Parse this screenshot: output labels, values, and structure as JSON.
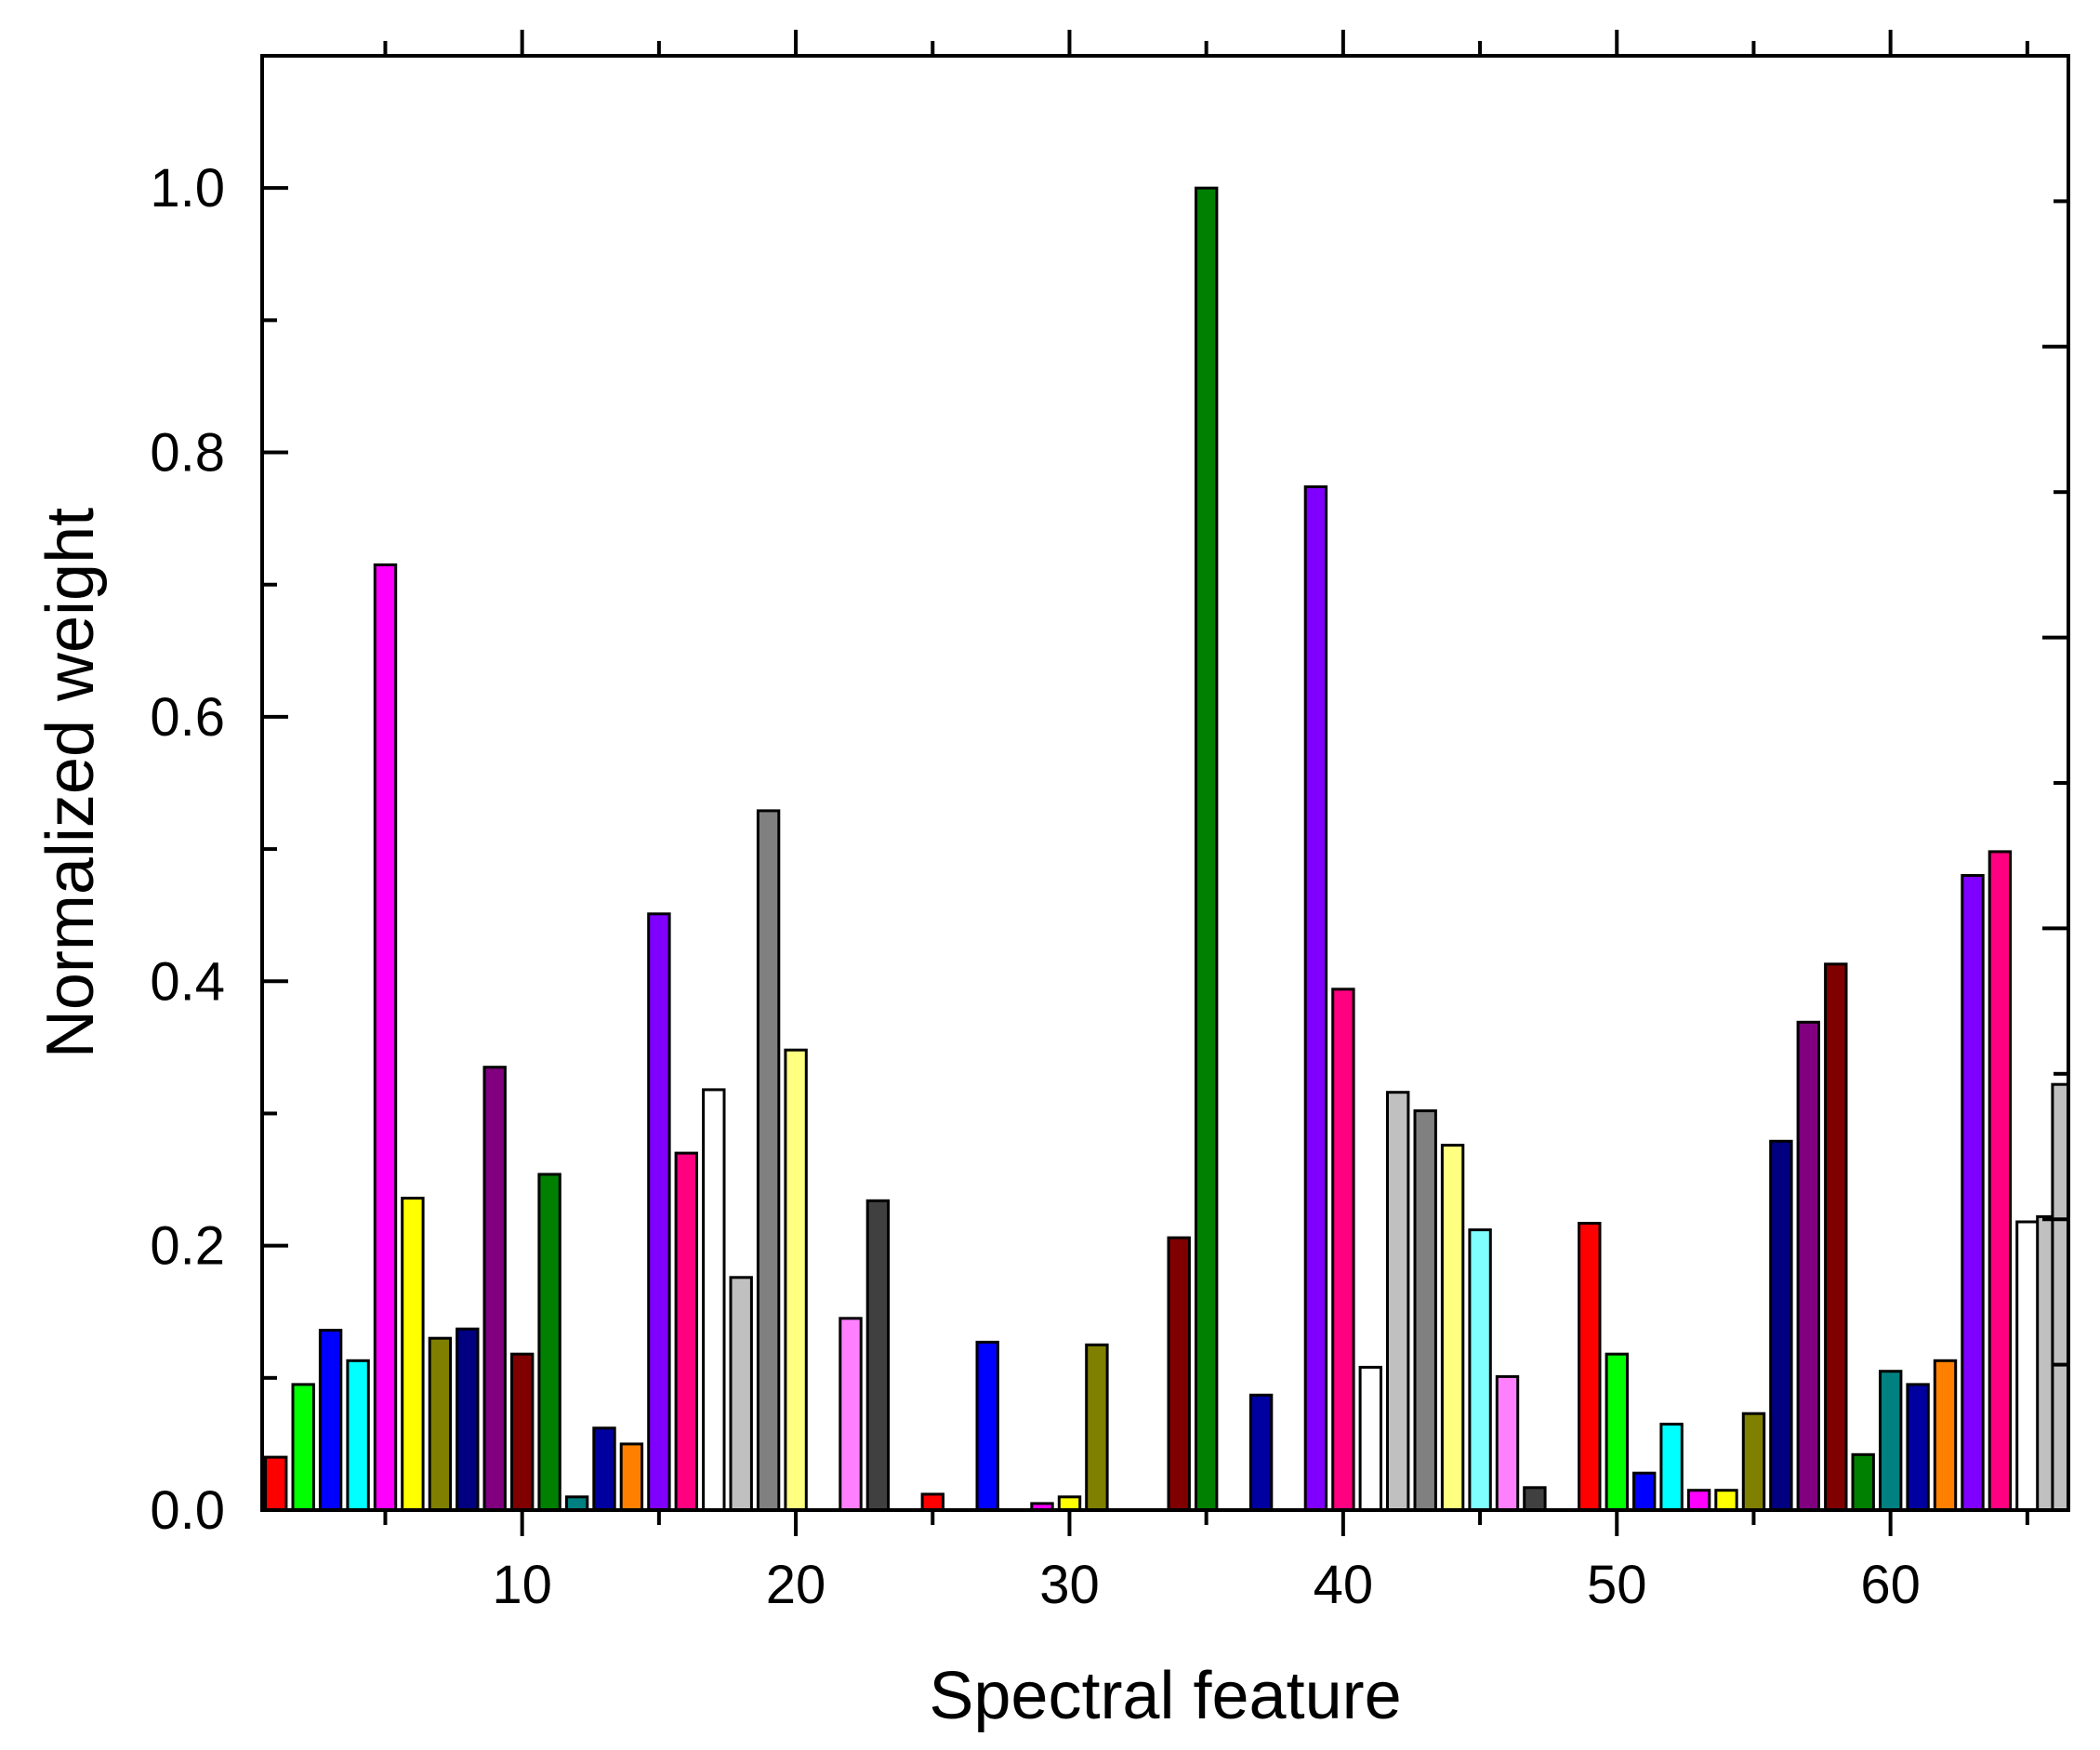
{
  "chart_data": {
    "type": "bar",
    "xlabel": "Spectral feature",
    "ylabel": "Normalized weight",
    "xlim": [
      0,
      66
    ],
    "ylim": [
      0,
      1.1
    ],
    "grid": false,
    "legend": "none",
    "x_ticks": [
      10,
      20,
      30,
      40,
      50,
      60
    ],
    "y_ticks": [
      "0.0",
      "0.2",
      "0.4",
      "0.6",
      "0.8",
      "1.0"
    ],
    "bars": [
      {
        "x": 1,
        "value": 0.04,
        "color": "#ff0000"
      },
      {
        "x": 2,
        "value": 0.095,
        "color": "#00ff00"
      },
      {
        "x": 3,
        "value": 0.136,
        "color": "#0000ff"
      },
      {
        "x": 4,
        "value": 0.113,
        "color": "#00ffff"
      },
      {
        "x": 5,
        "value": 0.715,
        "color": "#ff00ff"
      },
      {
        "x": 6,
        "value": 0.236,
        "color": "#ffff00"
      },
      {
        "x": 7,
        "value": 0.13,
        "color": "#808000"
      },
      {
        "x": 8,
        "value": 0.137,
        "color": "#000080"
      },
      {
        "x": 9,
        "value": 0.335,
        "color": "#800080"
      },
      {
        "x": 10,
        "value": 0.118,
        "color": "#800000"
      },
      {
        "x": 11,
        "value": 0.254,
        "color": "#008000"
      },
      {
        "x": 12,
        "value": 0.01,
        "color": "#008080"
      },
      {
        "x": 13,
        "value": 0.062,
        "color": "#0000a0"
      },
      {
        "x": 14,
        "value": 0.05,
        "color": "#ff8000"
      },
      {
        "x": 15,
        "value": 0.451,
        "color": "#8000ff"
      },
      {
        "x": 16,
        "value": 0.27,
        "color": "#ff0080"
      },
      {
        "x": 17,
        "value": 0.318,
        "color": "#ffffff"
      },
      {
        "x": 18,
        "value": 0.176,
        "color": "#c0c0c0"
      },
      {
        "x": 19,
        "value": 0.529,
        "color": "#808080"
      },
      {
        "x": 20,
        "value": 0.348,
        "color": "#ffff80"
      },
      {
        "x": 21,
        "value": 0.0,
        "color": "#80ffff"
      },
      {
        "x": 22,
        "value": 0.145,
        "color": "#ff80ff"
      },
      {
        "x": 23,
        "value": 0.234,
        "color": "#404040"
      },
      {
        "x": 24,
        "value": 0.0,
        "color": "#ff0000"
      },
      {
        "x": 25,
        "value": 0.012,
        "color": "#ff0000"
      },
      {
        "x": 26,
        "value": 0.0,
        "color": "#00ff00"
      },
      {
        "x": 27,
        "value": 0.127,
        "color": "#0000ff"
      },
      {
        "x": 28,
        "value": 0.0,
        "color": "#00ffff"
      },
      {
        "x": 29,
        "value": 0.005,
        "color": "#ff00ff"
      },
      {
        "x": 30,
        "value": 0.01,
        "color": "#ffff00"
      },
      {
        "x": 31,
        "value": 0.125,
        "color": "#808000"
      },
      {
        "x": 32,
        "value": 0.0,
        "color": "#000080"
      },
      {
        "x": 33,
        "value": 0.0,
        "color": "#800080"
      },
      {
        "x": 34,
        "value": 0.206,
        "color": "#800000"
      },
      {
        "x": 35,
        "value": 1.0,
        "color": "#008000"
      },
      {
        "x": 36,
        "value": 0.0,
        "color": "#008080"
      },
      {
        "x": 37,
        "value": 0.087,
        "color": "#0000a0"
      },
      {
        "x": 38,
        "value": 0.0,
        "color": "#ff8000"
      },
      {
        "x": 39,
        "value": 0.774,
        "color": "#8000ff"
      },
      {
        "x": 40,
        "value": 0.394,
        "color": "#ff0080"
      },
      {
        "x": 41,
        "value": 0.108,
        "color": "#ffffff"
      },
      {
        "x": 42,
        "value": 0.316,
        "color": "#c0c0c0"
      },
      {
        "x": 43,
        "value": 0.302,
        "color": "#808080"
      },
      {
        "x": 44,
        "value": 0.276,
        "color": "#ffff80"
      },
      {
        "x": 45,
        "value": 0.212,
        "color": "#80ffff"
      },
      {
        "x": 46,
        "value": 0.101,
        "color": "#ff80ff"
      },
      {
        "x": 47,
        "value": 0.017,
        "color": "#404040"
      },
      {
        "x": 48,
        "value": 0.0,
        "color": "#ff0000"
      },
      {
        "x": 49,
        "value": 0.217,
        "color": "#ff0000"
      },
      {
        "x": 50,
        "value": 0.118,
        "color": "#00ff00"
      },
      {
        "x": 51,
        "value": 0.028,
        "color": "#0000ff"
      },
      {
        "x": 52,
        "value": 0.065,
        "color": "#00ffff"
      },
      {
        "x": 53,
        "value": 0.015,
        "color": "#ff00ff"
      },
      {
        "x": 54,
        "value": 0.015,
        "color": "#ffff00"
      },
      {
        "x": 55,
        "value": 0.073,
        "color": "#808000"
      },
      {
        "x": 56,
        "value": 0.279,
        "color": "#000080"
      },
      {
        "x": 57,
        "value": 0.369,
        "color": "#800080"
      },
      {
        "x": 58,
        "value": 0.413,
        "color": "#800000"
      },
      {
        "x": 59,
        "value": 0.042,
        "color": "#008000"
      },
      {
        "x": 60,
        "value": 0.105,
        "color": "#008080"
      },
      {
        "x": 61,
        "value": 0.095,
        "color": "#0000a0"
      },
      {
        "x": 62,
        "value": 0.113,
        "color": "#ff8000"
      },
      {
        "x": 63,
        "value": 0.48,
        "color": "#8000ff"
      },
      {
        "x": 64,
        "value": 0.498,
        "color": "#ff0080"
      },
      {
        "x": 65,
        "value": 0.218,
        "color": "#ffffff"
      },
      {
        "x": 65.75,
        "value": 0.222,
        "color": "#c0c0c0"
      },
      {
        "x": 66.3,
        "value": 0.322,
        "color": "#c0c0c0"
      }
    ]
  }
}
